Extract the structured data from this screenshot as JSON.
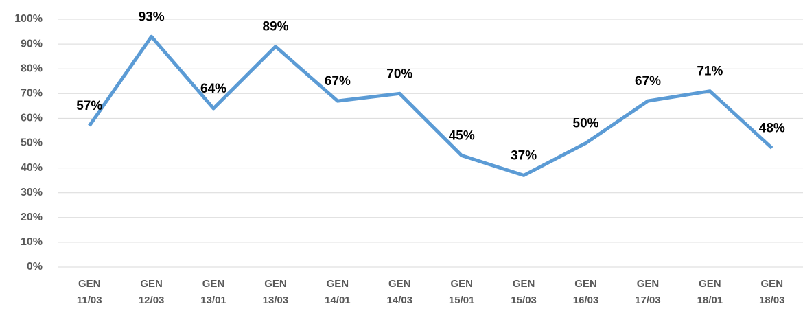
{
  "chart_data": {
    "type": "line",
    "categories": [
      "GEN 11/03",
      "GEN 12/03",
      "GEN 13/01",
      "GEN 13/03",
      "GEN 14/01",
      "GEN 14/03",
      "GEN 15/01",
      "GEN 15/03",
      "GEN 16/03",
      "GEN 17/03",
      "GEN 18/01",
      "GEN 18/03"
    ],
    "series": [
      {
        "name": null,
        "color": "#5b9bd5",
        "values": [
          57,
          93,
          64,
          89,
          67,
          70,
          45,
          37,
          50,
          67,
          71,
          48
        ],
        "value_labels": [
          "57%",
          "93%",
          "64%",
          "89%",
          "67%",
          "70%",
          "45%",
          "37%",
          "50%",
          "67%",
          "71%",
          "48%"
        ]
      }
    ],
    "ylim": [
      0,
      100
    ],
    "yticks": [
      {
        "value": 0,
        "label": "0%"
      },
      {
        "value": 10,
        "label": "10%"
      },
      {
        "value": 20,
        "label": "20%"
      },
      {
        "value": 30,
        "label": "30%"
      },
      {
        "value": 40,
        "label": "40%"
      },
      {
        "value": 50,
        "label": "50%"
      },
      {
        "value": 60,
        "label": "60%"
      },
      {
        "value": 70,
        "label": "70%"
      },
      {
        "value": 80,
        "label": "80%"
      },
      {
        "value": 90,
        "label": "90%"
      },
      {
        "value": 100,
        "label": "100%"
      }
    ],
    "grid": true
  }
}
